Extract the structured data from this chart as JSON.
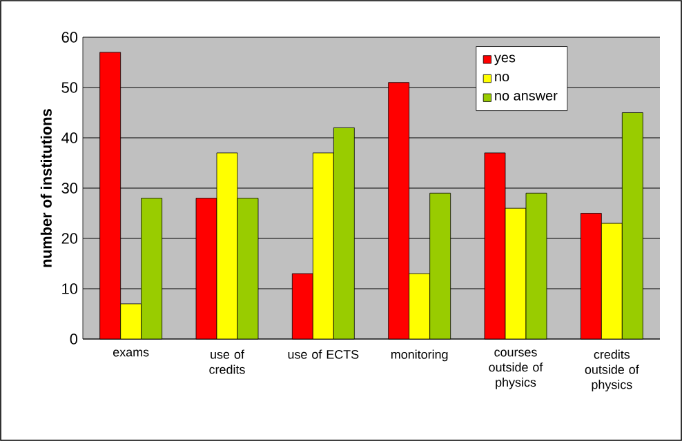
{
  "chart_data": {
    "type": "bar",
    "ylabel": "number of institutions",
    "categories": [
      "exams",
      "use of credits",
      "use of ECTS",
      "monitoring",
      "courses outside of physics",
      "credits outside of physics"
    ],
    "series": [
      {
        "name": "yes",
        "color": "#ff0000",
        "values": [
          57,
          28,
          13,
          51,
          37,
          25
        ]
      },
      {
        "name": "no",
        "color": "#ffff00",
        "values": [
          7,
          37,
          37,
          13,
          26,
          23
        ]
      },
      {
        "name": "no answer",
        "color": "#99cc00",
        "values": [
          28,
          28,
          42,
          29,
          29,
          45
        ]
      }
    ],
    "ylim": [
      0,
      60
    ],
    "yticks": [
      0,
      10,
      20,
      30,
      40,
      50,
      60
    ],
    "grid": "y",
    "legend": "top right"
  }
}
